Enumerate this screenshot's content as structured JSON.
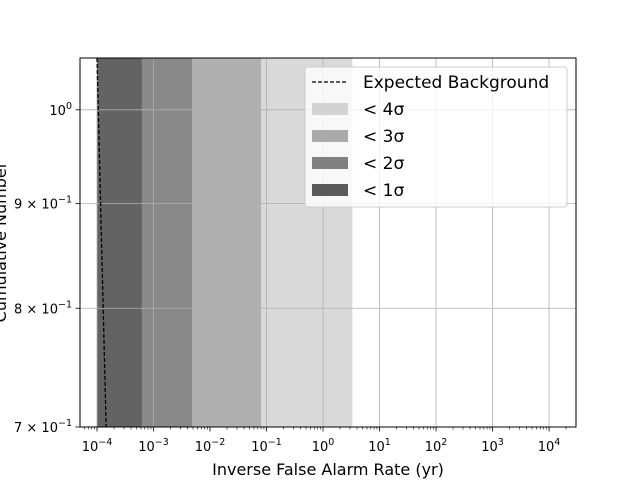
{
  "chart_data": {
    "type": "area",
    "title": "",
    "xlabel": "Inverse False Alarm Rate (yr)",
    "ylabel": "Cumulative Number",
    "xscale": "log",
    "yscale": "log",
    "xlim": [
      5e-05,
      30000
    ],
    "ylim": [
      0.7,
      1.06
    ],
    "grid": true,
    "legend_position": "top-right",
    "x_ticks": [
      {
        "value": 0.0001,
        "base": "10",
        "exp": "−4"
      },
      {
        "value": 0.001,
        "base": "10",
        "exp": "−3"
      },
      {
        "value": 0.01,
        "base": "10",
        "exp": "−2"
      },
      {
        "value": 0.1,
        "base": "10",
        "exp": "−1"
      },
      {
        "value": 1,
        "base": "10",
        "exp": "0"
      },
      {
        "value": 10,
        "base": "10",
        "exp": "1"
      },
      {
        "value": 100,
        "base": "10",
        "exp": "2"
      },
      {
        "value": 1000,
        "base": "10",
        "exp": "3"
      },
      {
        "value": 10000,
        "base": "10",
        "exp": "4"
      }
    ],
    "y_ticks": [
      {
        "value": 1.0,
        "base": "10",
        "exp": "0"
      },
      {
        "value": 0.9,
        "base": "9 × 10",
        "exp": "−1"
      },
      {
        "value": 0.8,
        "base": "8 × 10",
        "exp": "−1"
      },
      {
        "value": 0.7,
        "base": "7 × 10",
        "exp": "−1"
      }
    ],
    "bands": [
      {
        "name": "< 4σ",
        "x": [
          0.0001,
          3.3
        ],
        "color": "#d9d9d9"
      },
      {
        "name": "< 3σ",
        "x": [
          0.0001,
          0.08
        ],
        "color": "#b0b0b0"
      },
      {
        "name": "< 2σ",
        "x": [
          0.0001,
          0.0048
        ],
        "color": "#898989"
      },
      {
        "name": "< 1σ",
        "x": [
          0.0001,
          0.00062
        ],
        "color": "#636363"
      }
    ],
    "series": [
      {
        "name": "Expected Background",
        "style": "dashed",
        "color": "#000000",
        "points": [
          [
            0.0001,
            1.06
          ],
          [
            0.000145,
            0.7
          ]
        ]
      }
    ],
    "legend": [
      {
        "label": "Expected Background",
        "kind": "line"
      },
      {
        "label": "< 4σ",
        "kind": "patch",
        "color": "#d3d3d3"
      },
      {
        "label": "< 3σ",
        "kind": "patch",
        "color": "#a9a9a9"
      },
      {
        "label": "< 2σ",
        "kind": "patch",
        "color": "#808080"
      },
      {
        "label": "< 1σ",
        "kind": "patch",
        "color": "#5a5a5a"
      }
    ]
  }
}
